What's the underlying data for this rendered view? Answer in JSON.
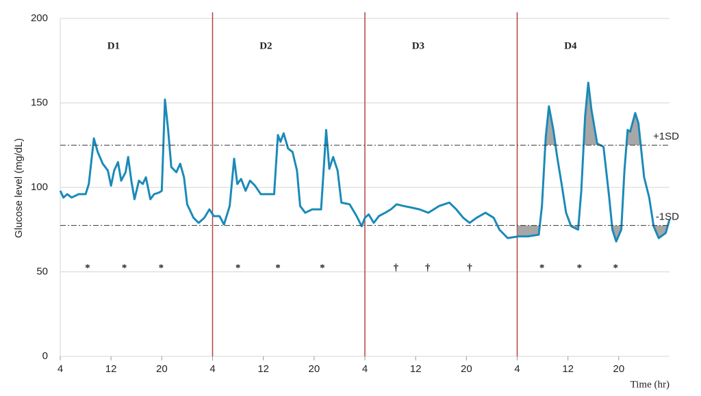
{
  "chart_data": {
    "type": "line",
    "y_label": "Glucose level (mg/dL)",
    "x_label": "Time (hr)",
    "xlim": [
      0,
      96
    ],
    "ylim": [
      0,
      200
    ],
    "yticks": [
      0,
      50,
      100,
      150,
      200
    ],
    "xticks": [
      {
        "value": 0,
        "label": "4"
      },
      {
        "value": 8,
        "label": "12"
      },
      {
        "value": 16,
        "label": "20"
      },
      {
        "value": 24,
        "label": "4"
      },
      {
        "value": 32,
        "label": "12"
      },
      {
        "value": 40,
        "label": "20"
      },
      {
        "value": 48,
        "label": "4"
      },
      {
        "value": 56,
        "label": "12"
      },
      {
        "value": 64,
        "label": "20"
      },
      {
        "value": 72,
        "label": "4"
      },
      {
        "value": 80,
        "label": "12"
      },
      {
        "value": 88,
        "label": "20"
      }
    ],
    "grid": true,
    "days": [
      "D1",
      "D2",
      "D3",
      "D4"
    ],
    "day_lines": [
      24,
      48,
      72
    ],
    "day_line_color": "#b5403f",
    "reference_lines": [
      {
        "value": 125,
        "label": "+1SD"
      },
      {
        "value": 77.5,
        "label": "-1SD"
      }
    ],
    "shade_from": 72,
    "shade_color": "#8a8a8a",
    "markers": [
      {
        "x": 4.3,
        "y": 52,
        "label": "*"
      },
      {
        "x": 10.1,
        "y": 52,
        "label": "*"
      },
      {
        "x": 15.9,
        "y": 52,
        "label": "*"
      },
      {
        "x": 28.0,
        "y": 52,
        "label": "*"
      },
      {
        "x": 34.3,
        "y": 52,
        "label": "*"
      },
      {
        "x": 41.3,
        "y": 52,
        "label": "*"
      },
      {
        "x": 52.9,
        "y": 52,
        "label": "†"
      },
      {
        "x": 57.9,
        "y": 52,
        "label": "†"
      },
      {
        "x": 64.5,
        "y": 52,
        "label": "†"
      },
      {
        "x": 75.9,
        "y": 52,
        "label": "*"
      },
      {
        "x": 81.8,
        "y": 52,
        "label": "*"
      },
      {
        "x": 87.5,
        "y": 52,
        "label": "*"
      }
    ],
    "series": [
      {
        "name": "Glucose",
        "color": "#1a8ab8",
        "x": [
          0,
          0.5,
          1.1,
          1.8,
          2.9,
          4.0,
          4.5,
          5.3,
          5.9,
          6.7,
          7.5,
          8.0,
          8.5,
          9.1,
          9.6,
          10.3,
          10.7,
          11.2,
          11.7,
          12.4,
          13.0,
          13.5,
          14.2,
          14.8,
          15.6,
          16.0,
          16.5,
          17.0,
          17.5,
          18.3,
          18.9,
          19.5,
          20.0,
          21.0,
          21.8,
          22.7,
          23.5,
          24.2,
          25.1,
          25.8,
          26.7,
          27.4,
          27.9,
          28.5,
          29.2,
          29.9,
          30.7,
          31.6,
          32.6,
          33.7,
          34.3,
          34.7,
          35.2,
          35.9,
          36.6,
          37.3,
          37.8,
          38.6,
          39.7,
          41.1,
          41.5,
          41.9,
          42.4,
          43.0,
          43.7,
          44.3,
          45.6,
          46.7,
          47.5,
          48.0,
          48.6,
          49.4,
          50.2,
          51.2,
          52.1,
          53.0,
          54.1,
          55.4,
          56.6,
          58.0,
          59.7,
          61.3,
          62.4,
          63.5,
          64.5,
          65.6,
          67.0,
          68.3,
          69.2,
          70.5,
          72.2,
          73.7,
          75.4,
          75.9,
          76.5,
          77.0,
          77.7,
          78.3,
          79.0,
          79.7,
          80.5,
          81.6,
          82.1,
          82.7,
          83.2,
          83.7,
          84.6,
          85.6,
          86.5,
          87.0,
          87.6,
          88.4,
          88.9,
          89.4,
          89.8,
          90.6,
          91.1,
          92.0,
          92.8,
          93.5,
          94.3,
          95.4,
          96
        ],
        "values": [
          98,
          94,
          96,
          94,
          96,
          96,
          102,
          129,
          121,
          114,
          110,
          101,
          110,
          115,
          104,
          109,
          118,
          104,
          93,
          104,
          102,
          106,
          93,
          96,
          97,
          98,
          152,
          134,
          112,
          109,
          114,
          106,
          90,
          82,
          79,
          82,
          87,
          83,
          83,
          78,
          89,
          117,
          102,
          105,
          98,
          104,
          101,
          96,
          96,
          96,
          131,
          127,
          132,
          123,
          121,
          110,
          89,
          85,
          87,
          87,
          110,
          134,
          111,
          118,
          110,
          91,
          90,
          83,
          77,
          82,
          84,
          79,
          83,
          85,
          87,
          90,
          89,
          88,
          87,
          85,
          89,
          91,
          87,
          82,
          79,
          82,
          85,
          82,
          75,
          70,
          71,
          71,
          72,
          89,
          130,
          148,
          134,
          118,
          102,
          85,
          77,
          75,
          98,
          142,
          162,
          146,
          126,
          124,
          94,
          75,
          68,
          75,
          110,
          134,
          133,
          144,
          138,
          106,
          94,
          77,
          70,
          73,
          81
        ]
      }
    ]
  }
}
